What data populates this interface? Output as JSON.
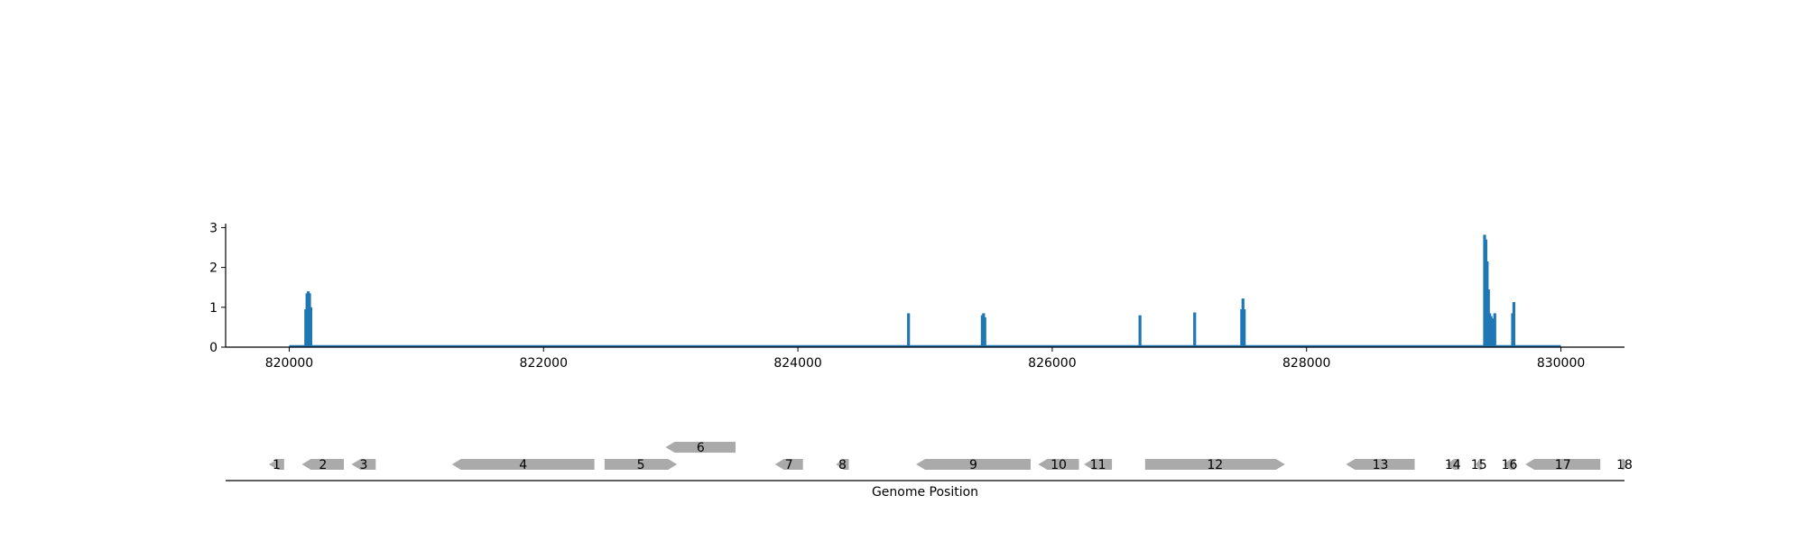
{
  "chart_data": [
    {
      "type": "bar",
      "title": "",
      "xlabel": "",
      "ylabel": "",
      "xlim": [
        819500,
        830500
      ],
      "ylim": [
        0,
        3.1
      ],
      "x_ticks": [
        820000,
        822000,
        824000,
        826000,
        828000,
        830000
      ],
      "x_tick_labels": [
        "820000",
        "822000",
        "824000",
        "826000",
        "828000",
        "830000"
      ],
      "y_ticks": [
        0,
        1,
        2,
        3
      ],
      "y_tick_labels": [
        "0",
        "1",
        "2",
        "3"
      ],
      "baseline": [
        820000,
        830000
      ],
      "color": "#1f77b4",
      "grid": false,
      "peaks": [
        {
          "x": 820130,
          "y": 0.95
        },
        {
          "x": 820140,
          "y": 1.35
        },
        {
          "x": 820150,
          "y": 1.4
        },
        {
          "x": 820160,
          "y": 1.35
        },
        {
          "x": 820170,
          "y": 1.0
        },
        {
          "x": 824870,
          "y": 0.85
        },
        {
          "x": 825450,
          "y": 0.8
        },
        {
          "x": 825460,
          "y": 0.85
        },
        {
          "x": 825470,
          "y": 0.75
        },
        {
          "x": 826690,
          "y": 0.8
        },
        {
          "x": 827120,
          "y": 0.87
        },
        {
          "x": 827490,
          "y": 0.95
        },
        {
          "x": 827500,
          "y": 1.22
        },
        {
          "x": 827510,
          "y": 0.95
        },
        {
          "x": 829400,
          "y": 2.82
        },
        {
          "x": 829410,
          "y": 2.7
        },
        {
          "x": 829420,
          "y": 2.15
        },
        {
          "x": 829430,
          "y": 1.45
        },
        {
          "x": 829440,
          "y": 0.85
        },
        {
          "x": 829450,
          "y": 0.78
        },
        {
          "x": 829460,
          "y": 0.72
        },
        {
          "x": 829480,
          "y": 0.85
        },
        {
          "x": 829620,
          "y": 0.85
        },
        {
          "x": 829630,
          "y": 1.13
        }
      ]
    },
    {
      "type": "gene-map",
      "xlabel": "Genome Position",
      "color": "#aaaaaa",
      "genes": [
        {
          "label": "1",
          "start": 819840,
          "end": 819960,
          "strand": "-",
          "row": 0
        },
        {
          "label": "2",
          "start": 820100,
          "end": 820430,
          "strand": "-",
          "row": 0
        },
        {
          "label": "3",
          "start": 820490,
          "end": 820680,
          "strand": "-",
          "row": 0
        },
        {
          "label": "4",
          "start": 821280,
          "end": 822400,
          "strand": "-",
          "row": 0
        },
        {
          "label": "5",
          "start": 822480,
          "end": 823050,
          "strand": "+",
          "row": 0
        },
        {
          "label": "6",
          "start": 822960,
          "end": 823510,
          "strand": "-",
          "row": 1
        },
        {
          "label": "7",
          "start": 823820,
          "end": 824040,
          "strand": "-",
          "row": 0
        },
        {
          "label": "8",
          "start": 824300,
          "end": 824400,
          "strand": "-",
          "row": 0
        },
        {
          "label": "9",
          "start": 824930,
          "end": 825830,
          "strand": "-",
          "row": 0
        },
        {
          "label": "10",
          "start": 825890,
          "end": 826210,
          "strand": "-",
          "row": 0
        },
        {
          "label": "11",
          "start": 826250,
          "end": 826470,
          "strand": "-",
          "row": 0
        },
        {
          "label": "12",
          "start": 826730,
          "end": 827830,
          "strand": "+",
          "row": 0
        },
        {
          "label": "13",
          "start": 828310,
          "end": 828850,
          "strand": "-",
          "row": 0
        },
        {
          "label": "14",
          "start": 829100,
          "end": 829200,
          "strand": "-",
          "row": 0
        },
        {
          "label": "15",
          "start": 829330,
          "end": 829380,
          "strand": "-",
          "row": 0
        },
        {
          "label": "16",
          "start": 829550,
          "end": 829640,
          "strand": "-",
          "row": 0
        },
        {
          "label": "17",
          "start": 829720,
          "end": 830310,
          "strand": "-",
          "row": 0
        },
        {
          "label": "18",
          "start": 830480,
          "end": 830520,
          "strand": "+",
          "row": 0
        }
      ]
    }
  ]
}
